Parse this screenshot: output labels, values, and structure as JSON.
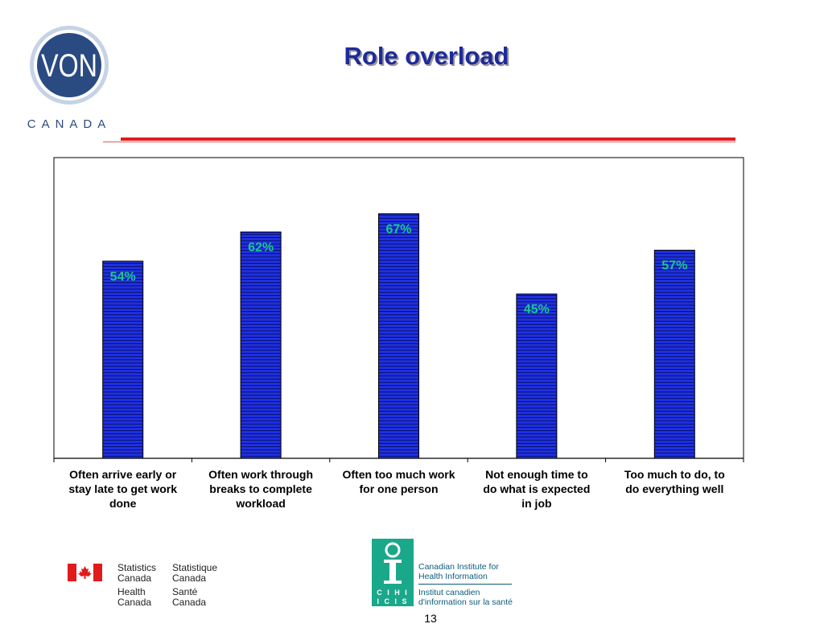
{
  "slide": {
    "title": "Role overload",
    "page_number": "13"
  },
  "logos": {
    "von_text": "VON",
    "von_subtext": "CANADA",
    "statcan_en": "Statistics Canada",
    "statcan_fr": "Statistique Canada",
    "health_en": "Health Canada",
    "health_fr": "Santé Canada",
    "cihi_en": "Canadian Institute for Health Information",
    "cihi_fr": "Institut canadien d'information sur la santé",
    "cihi_acronym": "CIHI ICIS"
  },
  "colors": {
    "title": "#1f2a99",
    "bar_fill": "#1f2fe0",
    "bar_stripe": "#0a1470",
    "data_label": "#19c98c",
    "rule": "#e01b1b"
  },
  "chart_data": {
    "type": "bar",
    "title": "",
    "xlabel": "",
    "ylabel": "",
    "ylim": [
      0,
      80
    ],
    "grid": false,
    "categories": [
      "Often arrive early or stay late to get work done",
      "Often work through breaks to complete workload",
      "Often too much work for one person",
      "Not enough time to do what is expected in job",
      "Too much to do, to do everything well"
    ],
    "category_lines": [
      [
        "Often arrive early or",
        "stay late to get work",
        "done"
      ],
      [
        "Often work through",
        "breaks to complete",
        "workload"
      ],
      [
        "Often too much work",
        "for one person"
      ],
      [
        "Not enough time to",
        "do what is expected",
        "in job"
      ],
      [
        "Too much to do, to",
        "do everything well"
      ]
    ],
    "values": [
      54,
      62,
      67,
      45,
      57
    ],
    "data_labels": [
      "54%",
      "62%",
      "67%",
      "45%",
      "57%"
    ]
  }
}
